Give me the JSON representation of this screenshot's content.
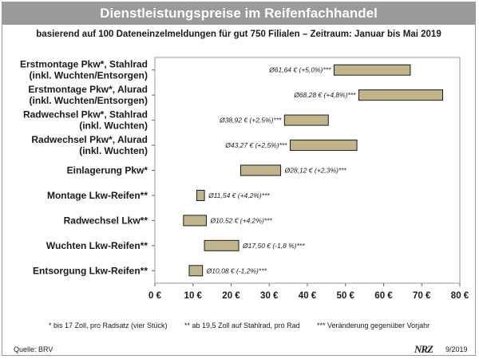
{
  "title": "Dienstleistungspreise im Reifenfachhandel",
  "subtitle": "basierend auf 100 Dateneinzelmeldungen für gut 750 Filialen – Zeitraum: Januar bis Mai 2019",
  "footnotes": {
    "f1": "* bis 17 Zoll, pro Radsatz (vier Stück)",
    "f2": "** ab 19,5 Zoll auf Stahlrad, pro Rad",
    "f3": "*** Veränderung gegenüber Vorjahr"
  },
  "source": "Quelle: BRV",
  "logo": {
    "text": "NRZ",
    "date": "9/2019"
  },
  "colors": {
    "bar": "#c2b48a",
    "bar_stroke": "#1a1a1a",
    "title_bg": "#9a9a9a"
  },
  "chart_data": {
    "type": "bar",
    "orientation": "horizontal-range",
    "xlim": [
      0,
      80
    ],
    "xticks": [
      "0 €",
      "10 €",
      "20 €",
      "30 €",
      "40 €",
      "50 €",
      "60 €",
      "70 €",
      "80 €"
    ],
    "grid": false,
    "categories": [
      {
        "lines": [
          "Erstmontage Pkw*, Stahlrad",
          "(inkl. Wuchten/Entsorgen)"
        ],
        "min": 47,
        "max": 67,
        "label": "Ø61,64 € (+5,0%)***"
      },
      {
        "lines": [
          "Erstmontage Pkw*, Alurad",
          "(inkl. Wuchten/Entsorgen)"
        ],
        "min": 53.5,
        "max": 75.5,
        "label": "Ø68,28 € (+4,8%)***"
      },
      {
        "lines": [
          "Radwechsel Pkw*, Stahlrad",
          "(inkl. Wuchten)"
        ],
        "min": 34,
        "max": 45.5,
        "label": "Ø38,92 € (+2,5%)***"
      },
      {
        "lines": [
          "Radwechsel Pkw*, Alurad",
          "(inkl. Wuchten)"
        ],
        "min": 35.5,
        "max": 53,
        "label": "Ø43,27 € (+2,5%)***"
      },
      {
        "lines": [
          "Einlagerung Pkw*"
        ],
        "min": 22.5,
        "max": 33,
        "label": "Ø28,12 € (+2,3%)***"
      },
      {
        "lines": [
          "Montage Lkw-Reifen**"
        ],
        "min": 11,
        "max": 13,
        "label": "Ø11,54 € (+4,2%)***"
      },
      {
        "lines": [
          "Radwechsel Lkw**"
        ],
        "min": 7.5,
        "max": 13.5,
        "label": "Ø10,52 € (+4,2%)***"
      },
      {
        "lines": [
          "Wuchten Lkw-Reifen**"
        ],
        "min": 13,
        "max": 22,
        "label": "Ø17,50 € (-1,8 %)***"
      },
      {
        "lines": [
          "Entsorgung Lkw-Reifen**"
        ],
        "min": 9,
        "max": 12.5,
        "label": "Ø10,08 € (-1,2%)***"
      }
    ]
  }
}
